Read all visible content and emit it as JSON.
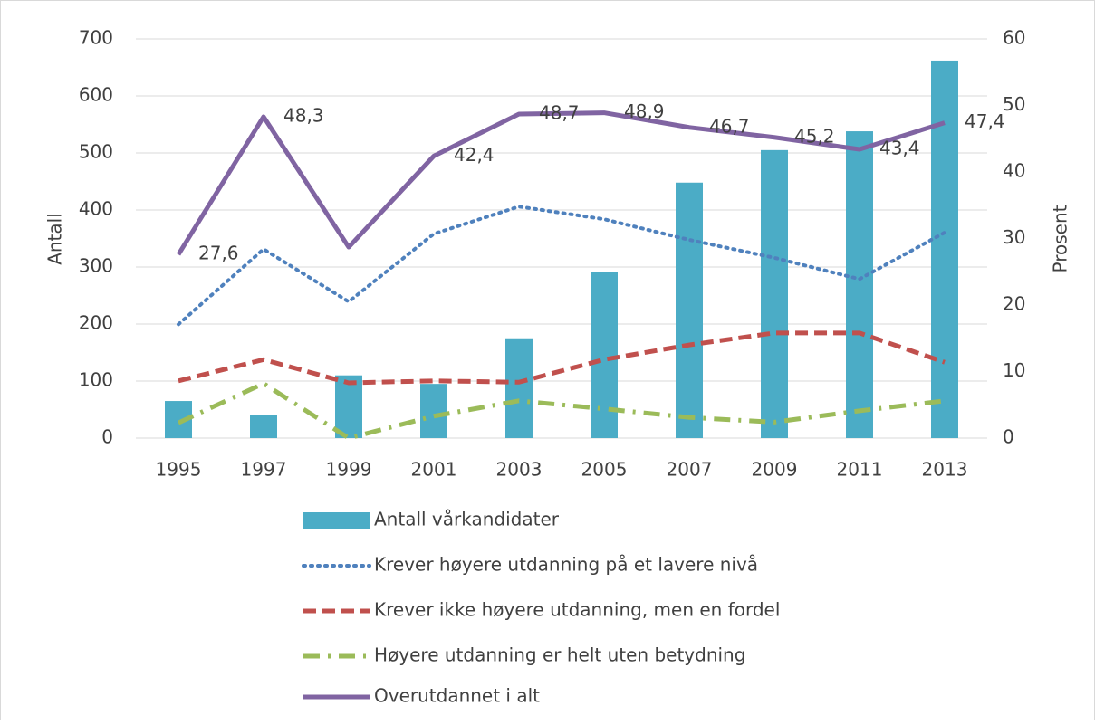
{
  "chart_data": {
    "type": "combo",
    "categories": [
      "1995",
      "1997",
      "1999",
      "2001",
      "2003",
      "2005",
      "2007",
      "2009",
      "2011",
      "2013"
    ],
    "ylabel": "Antall",
    "y2label": "Prosent",
    "ylim": [
      0,
      700
    ],
    "yticks": [
      0,
      100,
      200,
      300,
      400,
      500,
      600,
      700
    ],
    "y2lim": [
      0,
      60
    ],
    "y2ticks": [
      0,
      10,
      20,
      30,
      40,
      50,
      60
    ],
    "grid": true,
    "legend": "bottom",
    "series": [
      {
        "name": "Antall vårkandidater",
        "type": "bar",
        "color": "#4bacc6",
        "values": [
          65,
          40,
          110,
          95,
          175,
          292,
          448,
          505,
          538,
          662
        ]
      },
      {
        "name": "Krever høyere utdanning på et lavere nivå",
        "type": "line",
        "axis": "y2",
        "line_style": "dotted",
        "color": "#4f81bd",
        "values": [
          17.1,
          28.4,
          20.5,
          30.7,
          34.8,
          32.9,
          29.8,
          27.1,
          23.9,
          30.9
        ]
      },
      {
        "name": "Krever ikke høyere utdanning, men en fordel",
        "type": "line",
        "axis": "y2",
        "line_style": "dashed",
        "color": "#c0504d",
        "values": [
          8.6,
          11.8,
          8.3,
          8.6,
          8.4,
          11.8,
          14,
          15.8,
          15.8,
          11.4
        ]
      },
      {
        "name": "Høyere utdanning er helt uten  betydning",
        "type": "line",
        "axis": "y2",
        "line_style": "dashdot",
        "color": "#9bbb59",
        "values": [
          2.3,
          8.2,
          0,
          3.3,
          5.6,
          4.4,
          3.1,
          2.4,
          4.1,
          5.6
        ]
      },
      {
        "name": "Overutdannet i alt",
        "type": "line",
        "axis": "y2",
        "line_style": "solid",
        "color": "#8064a2",
        "values": [
          27.6,
          48.3,
          28.7,
          42.4,
          48.7,
          48.9,
          46.7,
          45.2,
          43.4,
          47.4
        ],
        "value_labels": [
          "27,6",
          "48,3",
          null,
          "42,4",
          "48,7",
          "48,9",
          "46,7",
          "45,2",
          "43,4",
          "47,4"
        ]
      }
    ]
  }
}
